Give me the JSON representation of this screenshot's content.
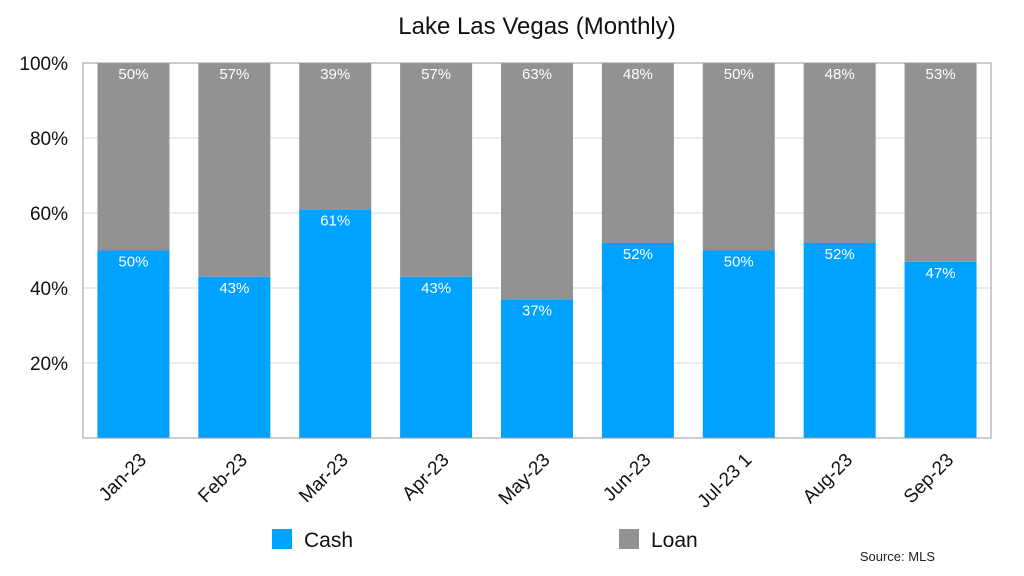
{
  "chart_data": {
    "type": "bar",
    "stacked": true,
    "normalized": true,
    "title": "Lake Las Vegas (Monthly)",
    "categories": [
      "Jan-23",
      "Feb-23",
      "Mar-23",
      "Apr-23",
      "May-23",
      "Jun-23",
      "Jul-23 1",
      "Aug-23",
      "Sep-23"
    ],
    "series": [
      {
        "name": "Cash",
        "color": "#00a2ff",
        "values": [
          50,
          43,
          61,
          43,
          37,
          52,
          50,
          52,
          47
        ],
        "labels": [
          "50%",
          "43%",
          "61%",
          "43%",
          "37%",
          "52%",
          "50%",
          "52%",
          "47%"
        ]
      },
      {
        "name": "Loan",
        "color": "#929292",
        "values": [
          50,
          57,
          39,
          57,
          63,
          48,
          50,
          48,
          53
        ],
        "labels": [
          "50%",
          "57%",
          "39%",
          "57%",
          "63%",
          "48%",
          "50%",
          "48%",
          "53%"
        ]
      }
    ],
    "ylim": [
      0,
      100
    ],
    "yticks": [
      20,
      40,
      60,
      80,
      100
    ],
    "ytick_labels": [
      "20%",
      "40%",
      "60%",
      "80%",
      "100%"
    ],
    "grid": true,
    "legend": "bottom",
    "source": "Source: MLS"
  }
}
